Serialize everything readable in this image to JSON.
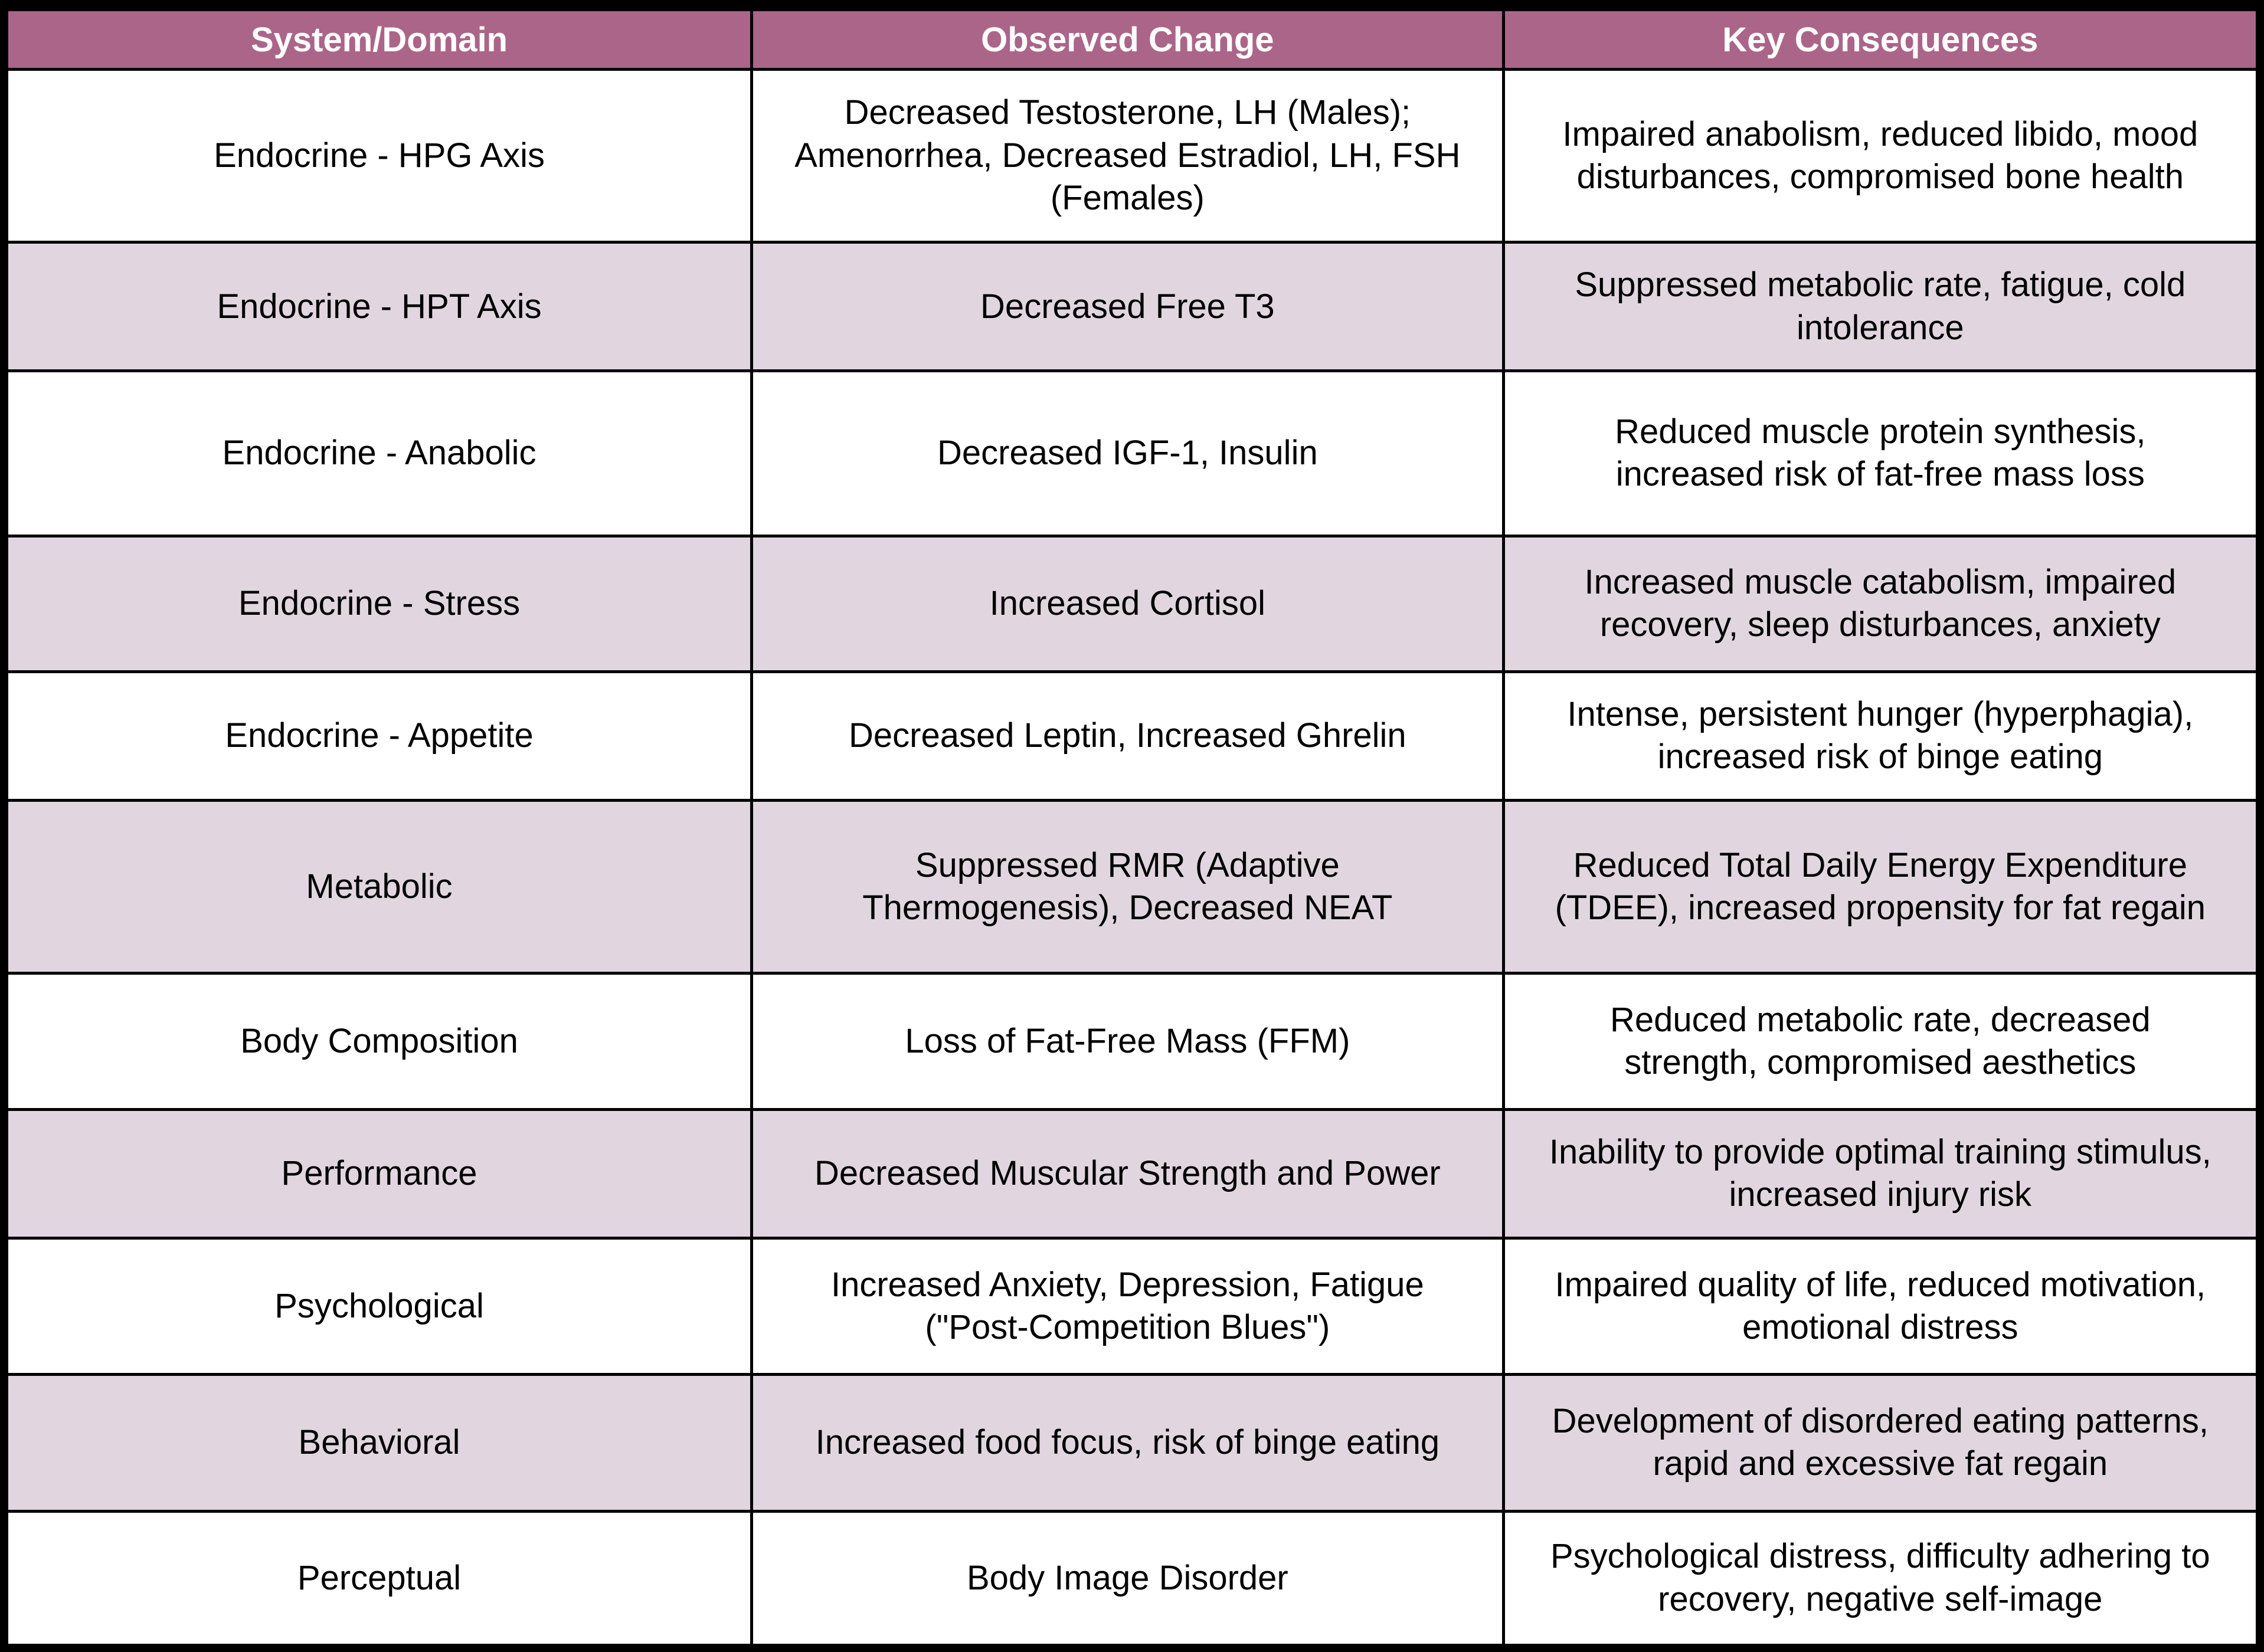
{
  "colors": {
    "header_bg": "#ab6589",
    "header_text": "#ffffff",
    "row_bg": "#ffffff",
    "row_alt_bg": "#e1d6df",
    "border": "#000000",
    "body_text": "#000000"
  },
  "chart_data": {
    "type": "table",
    "columns": [
      "System/Domain",
      "Observed Change",
      "Key Consequences"
    ],
    "rows": [
      [
        "Endocrine - HPG Axis",
        "Decreased Testosterone, LH (Males);\nAmenorrhea, Decreased Estradiol, LH, FSH\n(Females)",
        "Impaired anabolism, reduced libido, mood\ndisturbances, compromised bone health"
      ],
      [
        "Endocrine - HPT Axis",
        "Decreased Free T3",
        "Suppressed metabolic rate, fatigue, cold\nintolerance"
      ],
      [
        "Endocrine - Anabolic",
        "Decreased IGF-1, Insulin",
        "Reduced muscle protein synthesis,\nincreased risk of fat-free mass loss"
      ],
      [
        "Endocrine - Stress",
        "Increased Cortisol",
        "Increased muscle catabolism, impaired\nrecovery, sleep disturbances, anxiety"
      ],
      [
        "Endocrine - Appetite",
        "Decreased Leptin, Increased Ghrelin",
        "Intense, persistent hunger (hyperphagia),\nincreased risk of binge eating"
      ],
      [
        "Metabolic",
        "Suppressed RMR (Adaptive\nThermogenesis), Decreased NEAT",
        "Reduced Total Daily Energy Expenditure\n(TDEE), increased propensity for fat regain"
      ],
      [
        "Body Composition",
        "Loss of Fat-Free Mass (FFM)",
        "Reduced metabolic rate, decreased\nstrength, compromised aesthetics"
      ],
      [
        "Performance",
        "Decreased Muscular Strength and Power",
        "Inability to provide optimal training stimulus,\nincreased injury risk"
      ],
      [
        "Psychological",
        "Increased Anxiety, Depression, Fatigue\n(\"Post-Competition Blues\")",
        "Impaired quality of life, reduced motivation,\nemotional distress"
      ],
      [
        "Behavioral",
        "Increased food focus, risk of binge eating",
        "Development of disordered eating patterns,\nrapid and excessive fat regain"
      ],
      [
        "Perceptual",
        "Body Image Disorder",
        "Psychological distress, difficulty adhering to\nrecovery, negative self-image"
      ]
    ]
  }
}
